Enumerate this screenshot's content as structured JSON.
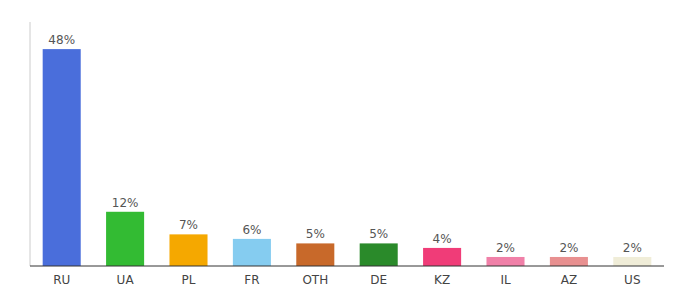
{
  "chart_data": {
    "type": "bar",
    "categories": [
      "RU",
      "UA",
      "PL",
      "FR",
      "OTH",
      "DE",
      "KZ",
      "IL",
      "AZ",
      "US"
    ],
    "values": [
      48,
      12,
      7,
      6,
      5,
      5,
      4,
      2,
      2,
      2
    ],
    "value_labels": [
      "48%",
      "12%",
      "7%",
      "6%",
      "5%",
      "5%",
      "4%",
      "2%",
      "2%",
      "2%"
    ],
    "colors": [
      "#4a6edb",
      "#33bb33",
      "#f5a800",
      "#85ccf0",
      "#c8692a",
      "#2a8a2a",
      "#f03c78",
      "#f080a8",
      "#e89090",
      "#f0edd8"
    ],
    "ylim": [
      0,
      54
    ],
    "data_labels": true,
    "tick_labels": "x",
    "grid": false
  }
}
